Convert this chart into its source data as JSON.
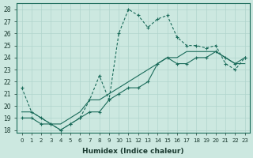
{
  "xlabel": "Humidex (Indice chaleur)",
  "ylabel": "",
  "background_color": "#cce8e0",
  "line_color": "#1a6b5a",
  "xlim": [
    -0.5,
    23.5
  ],
  "ylim": [
    17.8,
    28.5
  ],
  "yticks": [
    18,
    19,
    20,
    21,
    22,
    23,
    24,
    25,
    26,
    27,
    28
  ],
  "xticks": [
    0,
    1,
    2,
    3,
    4,
    5,
    6,
    7,
    8,
    9,
    10,
    11,
    12,
    13,
    14,
    15,
    16,
    17,
    18,
    19,
    20,
    21,
    22,
    23
  ],
  "line1_x": [
    0,
    1,
    2,
    3,
    4,
    5,
    6,
    7,
    8,
    9,
    10,
    11,
    12,
    13,
    14,
    15,
    16,
    17,
    18,
    19,
    20,
    21,
    22,
    23
  ],
  "line1_y": [
    21.5,
    19.5,
    19.0,
    18.5,
    18.0,
    18.5,
    19.0,
    20.5,
    22.5,
    20.5,
    26.0,
    28.0,
    27.5,
    26.5,
    27.2,
    27.5,
    25.7,
    25.0,
    25.0,
    24.8,
    25.0,
    23.5,
    23.0,
    24.0
  ],
  "line2_x": [
    0,
    1,
    2,
    3,
    4,
    5,
    6,
    7,
    8,
    9,
    10,
    11,
    12,
    13,
    14,
    15,
    16,
    17,
    18,
    19,
    20,
    21,
    22,
    23
  ],
  "line2_y": [
    19.5,
    19.5,
    19.0,
    18.5,
    18.5,
    19.0,
    19.5,
    20.5,
    20.5,
    21.0,
    21.5,
    22.0,
    22.5,
    23.0,
    23.5,
    24.0,
    24.0,
    24.5,
    24.5,
    24.5,
    24.5,
    24.0,
    23.5,
    23.5
  ],
  "line3_x": [
    0,
    1,
    2,
    3,
    4,
    5,
    6,
    7,
    8,
    9,
    10,
    11,
    12,
    13,
    14,
    15,
    16,
    17,
    18,
    19,
    20,
    21,
    22,
    23
  ],
  "line3_y": [
    19.0,
    19.0,
    18.5,
    18.5,
    18.0,
    18.5,
    19.0,
    19.5,
    19.5,
    20.5,
    21.0,
    21.5,
    21.5,
    22.0,
    23.5,
    24.0,
    23.5,
    23.5,
    24.0,
    24.0,
    24.5,
    24.0,
    23.5,
    24.0
  ]
}
